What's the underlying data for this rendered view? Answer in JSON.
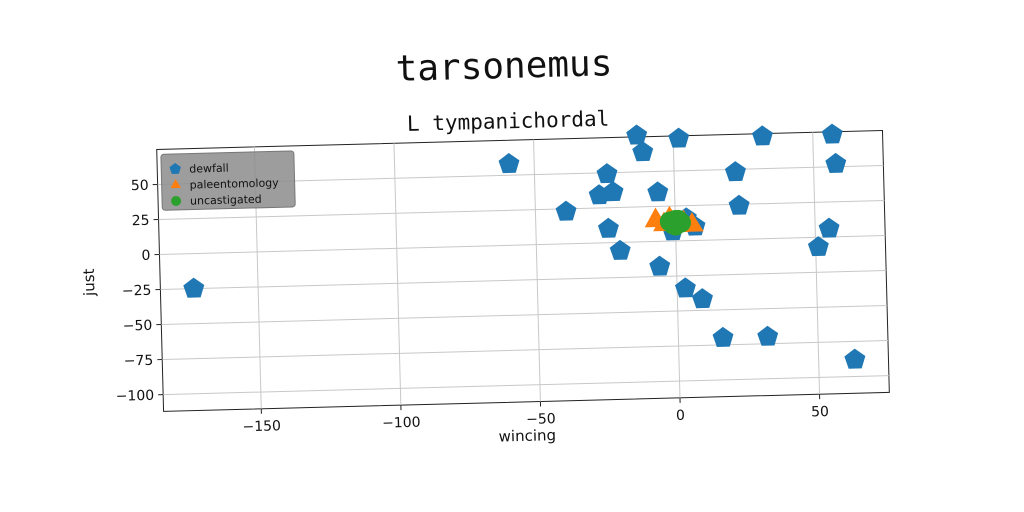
{
  "chart_data": {
    "type": "scatter",
    "suptitle": "tarsonemus",
    "title": "L tympanichordal",
    "xlabel": "wincing",
    "ylabel": "just",
    "xlim": [
      -185,
      75
    ],
    "ylim": [
      -112,
      75
    ],
    "xticks": [
      -150,
      -100,
      -50,
      0,
      50
    ],
    "yticks": [
      -100,
      -75,
      -50,
      -25,
      0,
      25,
      50
    ],
    "grid": true,
    "legend_position": "top-left",
    "series": [
      {
        "name": "dewfall",
        "color": "#1f77b4",
        "marker": "pentagon",
        "points": [
          [
            -173,
            -25
          ],
          [
            -59,
            58
          ],
          [
            -39,
            23
          ],
          [
            -24,
            49
          ],
          [
            -27,
            34
          ],
          [
            -22,
            36
          ],
          [
            -24,
            10
          ],
          [
            -20,
            -6
          ],
          [
            -13,
            76
          ],
          [
            -11,
            64
          ],
          [
            -6,
            35
          ],
          [
            -6,
            -18
          ],
          [
            2,
            73
          ],
          [
            4,
            16
          ],
          [
            7,
            10
          ],
          [
            -1,
            7
          ],
          [
            3,
            -34
          ],
          [
            9,
            -42
          ],
          [
            16,
            -70
          ],
          [
            22,
            48
          ],
          [
            23,
            24
          ],
          [
            32,
            -70
          ],
          [
            32,
            73
          ],
          [
            51,
            -7
          ],
          [
            55,
            6
          ],
          [
            57,
            73
          ],
          [
            58,
            52
          ],
          [
            63,
            -88
          ]
        ]
      },
      {
        "name": "paleentomology",
        "color": "#ff7f0e",
        "marker": "triangle",
        "points": [
          [
            -7,
            15
          ],
          [
            -4,
            12
          ],
          [
            -2,
            16
          ],
          [
            1,
            11
          ],
          [
            3,
            13
          ],
          [
            6,
            11
          ]
        ]
      },
      {
        "name": "uncastigated",
        "color": "#2ca02c",
        "marker": "circle",
        "points": [
          [
            -2,
            14
          ],
          [
            0,
            15
          ],
          [
            2,
            13
          ],
          [
            0,
            11
          ],
          [
            -1,
            12
          ],
          [
            1,
            15
          ]
        ]
      }
    ]
  }
}
